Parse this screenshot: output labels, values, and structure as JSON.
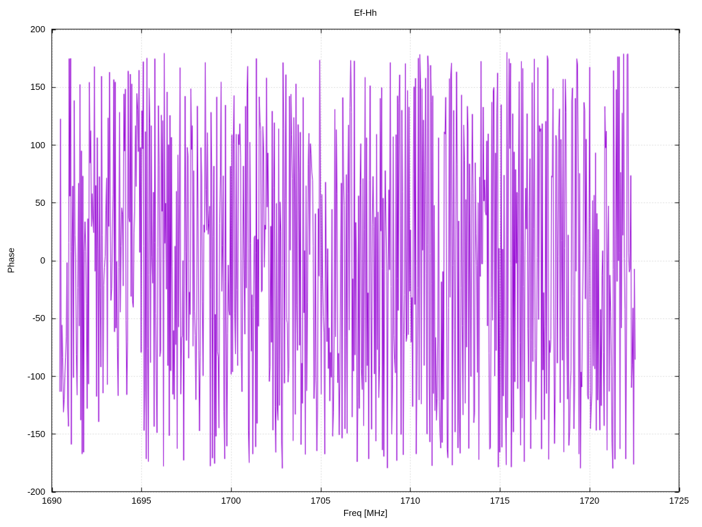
{
  "colors": {
    "line": "#9400d3",
    "grid": "#b8b8b8",
    "border": "#000000",
    "background": "#ffffff",
    "text": "#000000"
  },
  "chart_data": {
    "type": "line",
    "title": "Ef-Hh",
    "xlabel": "Freq [MHz]",
    "ylabel": "Phase",
    "xlim": [
      1690,
      1725
    ],
    "ylim": [
      -200,
      200
    ],
    "xticks": [
      1690,
      1695,
      1700,
      1705,
      1710,
      1715,
      1720,
      1725
    ],
    "yticks": [
      -200,
      -150,
      -100,
      -50,
      0,
      50,
      100,
      150,
      200
    ],
    "grid": true,
    "grid_style": "dotted",
    "legend_position": "none",
    "series": [
      {
        "name": "Ef-Hh",
        "color": "#9400d3",
        "x_start": 1690.45,
        "x_end": 1722.55,
        "n_points": 800,
        "y_wrap_min": -180,
        "y_wrap_max": 180,
        "generator": {
          "kind": "wrapped-phase-random-walk",
          "seed": 1337,
          "max_step_deg": 200
        },
        "note": "Dense wrapped interferometric phase noise spanning -180..180 deg across 1690.45-1722.55 MHz; individual samples are not resolvable in the source image, so the series is reproduced statistically via the seeded generator parameters above."
      }
    ]
  }
}
